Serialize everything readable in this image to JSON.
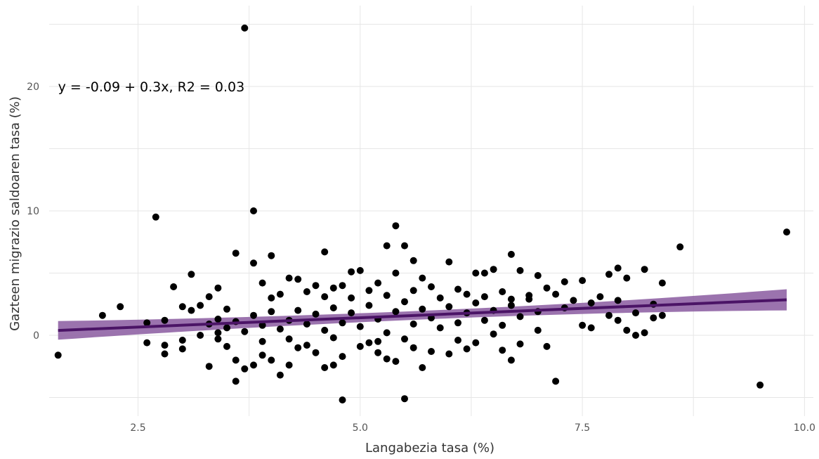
{
  "chart_data": {
    "type": "scatter",
    "xlabel": "Langabezia tasa (%)",
    "ylabel": "Gazteen migrazio saldoaren tasa (%)",
    "xlim": [
      1.5,
      10.1
    ],
    "ylim": [
      -6.5,
      26.5
    ],
    "xticks": [
      2.5,
      5.0,
      7.5,
      10.0
    ],
    "xtick_labels": [
      "2.5",
      "5.0",
      "7.5",
      "10.0"
    ],
    "yticks": [
      0,
      10,
      20
    ],
    "ytick_labels": [
      "0",
      "10",
      "20"
    ],
    "grid": true,
    "annotation": "y = -0.09 + 0.3x, R2 = 0.03",
    "annotation_pos": [
      1.6,
      20
    ],
    "regression": {
      "x_range": [
        1.6,
        9.8
      ],
      "intercept": -0.09,
      "slope": 0.3,
      "ci_half_width_left": 0.75,
      "ci_half_width_mid": 0.35,
      "ci_half_width_right": 0.85,
      "color": "#4b1466",
      "band_color": "#8a5aa0"
    },
    "points": [
      [
        3.7,
        24.7
      ],
      [
        2.7,
        9.5
      ],
      [
        3.8,
        10.0
      ],
      [
        5.4,
        8.8
      ],
      [
        9.8,
        8.3
      ],
      [
        8.6,
        7.1
      ],
      [
        3.6,
        6.6
      ],
      [
        4.0,
        6.4
      ],
      [
        4.6,
        6.7
      ],
      [
        5.3,
        7.2
      ],
      [
        5.5,
        7.2
      ],
      [
        6.7,
        6.5
      ],
      [
        3.8,
        5.8
      ],
      [
        5.6,
        6.0
      ],
      [
        6.0,
        5.9
      ],
      [
        7.9,
        5.4
      ],
      [
        8.2,
        5.3
      ],
      [
        3.1,
        4.9
      ],
      [
        2.9,
        3.9
      ],
      [
        3.4,
        3.8
      ],
      [
        4.2,
        4.6
      ],
      [
        4.3,
        4.5
      ],
      [
        4.9,
        5.1
      ],
      [
        5.0,
        5.2
      ],
      [
        5.4,
        5.0
      ],
      [
        6.3,
        5.0
      ],
      [
        6.4,
        5.0
      ],
      [
        6.5,
        5.3
      ],
      [
        6.8,
        5.2
      ],
      [
        7.0,
        4.8
      ],
      [
        7.3,
        4.3
      ],
      [
        7.5,
        4.4
      ],
      [
        7.8,
        4.9
      ],
      [
        8.0,
        4.6
      ],
      [
        8.4,
        4.2
      ],
      [
        2.3,
        2.3
      ],
      [
        2.1,
        1.6
      ],
      [
        2.6,
        1.0
      ],
      [
        2.8,
        1.2
      ],
      [
        3.0,
        2.3
      ],
      [
        3.1,
        2.0
      ],
      [
        3.2,
        2.4
      ],
      [
        3.3,
        3.1
      ],
      [
        3.5,
        2.1
      ],
      [
        3.9,
        4.2
      ],
      [
        4.1,
        3.3
      ],
      [
        4.4,
        3.5
      ],
      [
        4.5,
        4.0
      ],
      [
        4.7,
        3.8
      ],
      [
        4.8,
        4.0
      ],
      [
        5.1,
        3.6
      ],
      [
        5.2,
        4.2
      ],
      [
        5.7,
        4.6
      ],
      [
        5.8,
        3.9
      ],
      [
        6.1,
        3.7
      ],
      [
        6.2,
        3.3
      ],
      [
        6.6,
        3.5
      ],
      [
        6.9,
        3.2
      ],
      [
        7.1,
        3.8
      ],
      [
        7.2,
        3.3
      ],
      [
        7.4,
        2.8
      ],
      [
        7.6,
        2.6
      ],
      [
        7.7,
        3.1
      ],
      [
        7.9,
        2.8
      ],
      [
        8.1,
        1.8
      ],
      [
        8.3,
        2.5
      ],
      [
        8.4,
        1.6
      ],
      [
        1.6,
        -1.6
      ],
      [
        2.6,
        -0.6
      ],
      [
        2.8,
        -0.8
      ],
      [
        2.8,
        -1.5
      ],
      [
        3.0,
        -1.1
      ],
      [
        3.0,
        -0.4
      ],
      [
        3.2,
        0.0
      ],
      [
        3.3,
        -2.5
      ],
      [
        3.4,
        -0.3
      ],
      [
        3.5,
        -0.9
      ],
      [
        3.6,
        -2.0
      ],
      [
        3.6,
        -3.7
      ],
      [
        3.7,
        -2.7
      ],
      [
        3.8,
        -2.4
      ],
      [
        3.9,
        -1.6
      ],
      [
        4.0,
        -2.0
      ],
      [
        4.1,
        -3.2
      ],
      [
        4.2,
        -2.4
      ],
      [
        4.3,
        -1.0
      ],
      [
        4.5,
        -1.4
      ],
      [
        4.6,
        -2.6
      ],
      [
        4.7,
        -2.4
      ],
      [
        4.8,
        -1.7
      ],
      [
        4.8,
        -5.2
      ],
      [
        5.0,
        -0.9
      ],
      [
        5.1,
        -0.6
      ],
      [
        5.2,
        -1.4
      ],
      [
        5.3,
        -1.9
      ],
      [
        5.4,
        -2.1
      ],
      [
        5.5,
        -5.1
      ],
      [
        5.6,
        -1.0
      ],
      [
        5.7,
        -2.6
      ],
      [
        5.8,
        -1.3
      ],
      [
        6.0,
        -1.5
      ],
      [
        6.2,
        -1.1
      ],
      [
        6.3,
        -0.6
      ],
      [
        6.6,
        -1.2
      ],
      [
        6.7,
        -2.0
      ],
      [
        6.8,
        -0.7
      ],
      [
        7.1,
        -0.9
      ],
      [
        7.2,
        -3.7
      ],
      [
        7.0,
        0.4
      ],
      [
        7.5,
        0.8
      ],
      [
        7.6,
        0.6
      ],
      [
        7.8,
        1.6
      ],
      [
        7.9,
        1.2
      ],
      [
        8.0,
        0.4
      ],
      [
        8.1,
        0.0
      ],
      [
        8.2,
        0.2
      ],
      [
        8.3,
        1.4
      ],
      [
        9.5,
        -4.0
      ],
      [
        3.3,
        0.9
      ],
      [
        3.4,
        1.3
      ],
      [
        3.5,
        0.6
      ],
      [
        3.6,
        1.1
      ],
      [
        3.7,
        0.3
      ],
      [
        3.8,
        1.6
      ],
      [
        3.9,
        0.8
      ],
      [
        4.0,
        1.9
      ],
      [
        4.1,
        0.5
      ],
      [
        4.2,
        1.2
      ],
      [
        4.3,
        2.0
      ],
      [
        4.4,
        0.9
      ],
      [
        4.5,
        1.7
      ],
      [
        4.6,
        0.4
      ],
      [
        4.7,
        2.2
      ],
      [
        4.8,
        1.0
      ],
      [
        4.9,
        1.8
      ],
      [
        5.0,
        0.7
      ],
      [
        5.1,
        2.4
      ],
      [
        5.2,
        1.3
      ],
      [
        5.3,
        0.2
      ],
      [
        5.4,
        1.9
      ],
      [
        5.5,
        2.7
      ],
      [
        5.6,
        0.9
      ],
      [
        5.7,
        2.1
      ],
      [
        5.8,
        1.4
      ],
      [
        5.9,
        0.6
      ],
      [
        6.0,
        2.3
      ],
      [
        6.1,
        1.0
      ],
      [
        6.2,
        1.8
      ],
      [
        6.3,
        2.6
      ],
      [
        6.4,
        1.2
      ],
      [
        6.5,
        2.0
      ],
      [
        6.6,
        0.8
      ],
      [
        6.7,
        2.4
      ],
      [
        6.8,
        1.5
      ],
      [
        6.9,
        2.9
      ],
      [
        7.0,
        1.9
      ],
      [
        3.4,
        0.2
      ],
      [
        3.9,
        -0.5
      ],
      [
        4.4,
        -0.8
      ],
      [
        4.6,
        3.1
      ],
      [
        4.9,
        3.0
      ],
      [
        5.3,
        3.2
      ],
      [
        5.6,
        3.6
      ],
      [
        5.9,
        3.0
      ],
      [
        6.4,
        3.1
      ],
      [
        6.7,
        2.9
      ],
      [
        7.3,
        2.2
      ],
      [
        4.0,
        3.0
      ],
      [
        4.2,
        -0.3
      ],
      [
        4.7,
        -0.2
      ],
      [
        5.2,
        -0.5
      ],
      [
        5.5,
        -0.3
      ],
      [
        6.1,
        -0.4
      ],
      [
        6.5,
        0.1
      ]
    ]
  }
}
